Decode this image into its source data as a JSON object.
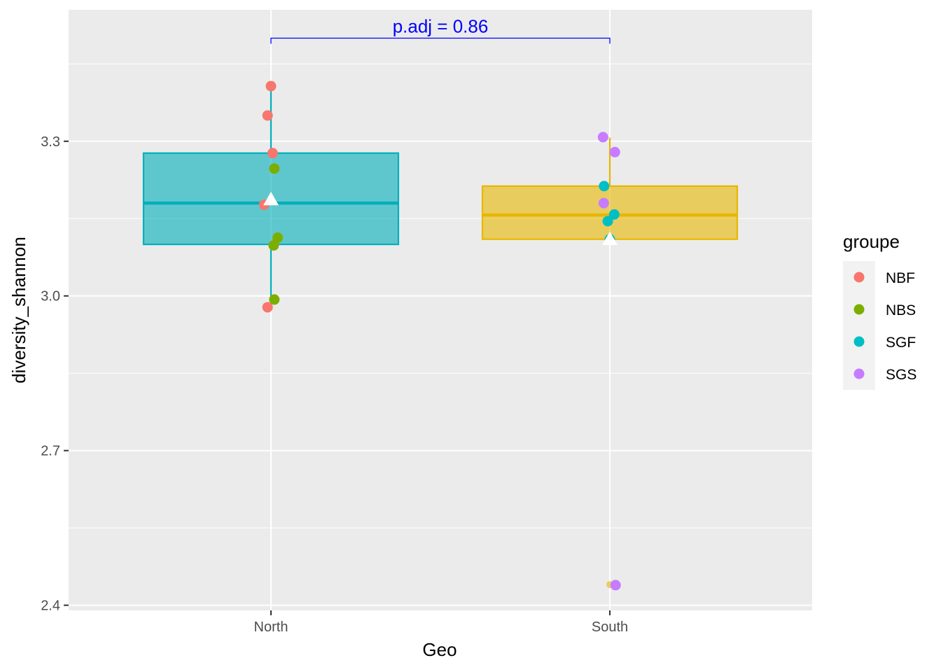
{
  "chart_data": {
    "type": "boxplot",
    "title": "",
    "xlabel": "Geo",
    "ylabel": "diversity_shannon",
    "ylim": [
      2.39,
      3.555
    ],
    "y_ticks": [
      2.4,
      2.7,
      3.0,
      3.3
    ],
    "y_tick_labels": [
      "2.4",
      "2.7",
      "3.0",
      "3.3"
    ],
    "categories": [
      "North",
      "South"
    ],
    "grid": true,
    "legend": {
      "title": "groupe",
      "placement": "right",
      "entries": [
        {
          "label": "NBF",
          "color": "#F8766D"
        },
        {
          "label": "NBS",
          "color": "#7CAE00"
        },
        {
          "label": "SGF",
          "color": "#00BFC4"
        },
        {
          "label": "SGS",
          "color": "#C77CFF"
        }
      ]
    },
    "boxes": [
      {
        "category": "North",
        "fill": "#00AFBB",
        "lower_whisker": 2.98,
        "q1": 3.1,
        "median": 3.18,
        "q3": 3.277,
        "upper_whisker": 3.408,
        "mean": 3.187,
        "outliers": []
      },
      {
        "category": "South",
        "fill": "#E7B800",
        "lower_whisker": 3.11,
        "q1": 3.11,
        "median": 3.157,
        "q3": 3.213,
        "upper_whisker": 3.307,
        "mean": 3.11,
        "outliers": [
          2.44
        ]
      }
    ],
    "points": [
      {
        "category": "North",
        "group": "NBF",
        "x_offset": 0.0,
        "y": 3.407
      },
      {
        "category": "North",
        "group": "NBF",
        "x_offset": -0.01,
        "y": 3.35
      },
      {
        "category": "North",
        "group": "NBF",
        "x_offset": 0.005,
        "y": 3.277
      },
      {
        "category": "North",
        "group": "NBF",
        "x_offset": -0.02,
        "y": 3.177
      },
      {
        "category": "North",
        "group": "NBF",
        "x_offset": -0.01,
        "y": 2.978
      },
      {
        "category": "North",
        "group": "NBS",
        "x_offset": 0.01,
        "y": 3.247
      },
      {
        "category": "North",
        "group": "NBS",
        "x_offset": 0.02,
        "y": 3.113
      },
      {
        "category": "North",
        "group": "NBS",
        "x_offset": 0.008,
        "y": 3.098
      },
      {
        "category": "North",
        "group": "NBS",
        "x_offset": 0.01,
        "y": 2.993
      },
      {
        "category": "South",
        "group": "SGS",
        "x_offset": -0.02,
        "y": 3.308
      },
      {
        "category": "South",
        "group": "SGS",
        "x_offset": 0.015,
        "y": 3.279
      },
      {
        "category": "South",
        "group": "SGF",
        "x_offset": -0.017,
        "y": 3.213
      },
      {
        "category": "South",
        "group": "SGS",
        "x_offset": -0.018,
        "y": 3.18
      },
      {
        "category": "South",
        "group": "SGF",
        "x_offset": 0.013,
        "y": 3.158
      },
      {
        "category": "South",
        "group": "SGF",
        "x_offset": -0.006,
        "y": 3.145
      },
      {
        "category": "South",
        "group": "SGF",
        "x_offset": 0.0,
        "y": 3.11
      },
      {
        "category": "South",
        "group": "SGS",
        "x_offset": 0.017,
        "y": 2.439
      }
    ],
    "annotations": [
      {
        "text": "p.adj = 0.86",
        "from": "North",
        "to": "South",
        "y": 3.5,
        "color": "#0000FF"
      }
    ]
  }
}
